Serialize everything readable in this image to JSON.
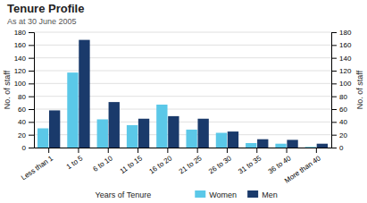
{
  "chart_data": {
    "type": "bar",
    "title": "Tenure Profile",
    "subtitle": "As at 30 June 2005",
    "categories": [
      "Less than 1",
      "1 to 5",
      "6 to 10",
      "11 to 15",
      "16 to 20",
      "21 to 25",
      "26 to 30",
      "31 to 35",
      "36 to 40",
      "More than 40"
    ],
    "series": [
      {
        "name": "Women",
        "color": "#5bc8e8",
        "values": [
          30,
          117,
          44,
          35,
          67,
          28,
          23,
          7,
          6,
          1
        ]
      },
      {
        "name": "Men",
        "color": "#1a3a6b",
        "values": [
          58,
          168,
          71,
          45,
          49,
          45,
          25,
          13,
          12,
          6
        ]
      }
    ],
    "xlabel": "Years of Tenure",
    "ylabel": "No. of staff",
    "y2label": "No. of staff",
    "ylim": [
      0,
      180
    ],
    "yticks": [
      0,
      20,
      40,
      60,
      80,
      100,
      120,
      140,
      160,
      180
    ],
    "y2lim": [
      0,
      180
    ],
    "y2ticks": [
      0,
      20,
      40,
      60,
      80,
      100,
      120,
      140,
      160,
      180
    ],
    "grid": true,
    "legend": "bottom"
  }
}
